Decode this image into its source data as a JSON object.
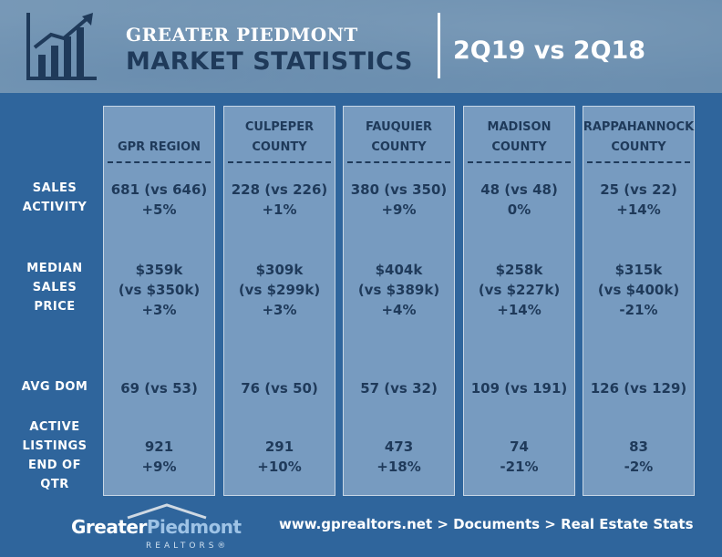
{
  "header": {
    "brand_line1": "GREATER PIEDMONT",
    "brand_line2": "MARKET STATISTICS",
    "period": "2Q19 vs 2Q18",
    "icon": "bar-chart-growth-icon"
  },
  "row_labels": [
    [
      "SALES",
      "ACTIVITY"
    ],
    [
      "MEDIAN",
      "SALES",
      "PRICE"
    ],
    [
      "AVG DOM"
    ],
    [
      "ACTIVE",
      "LISTINGS",
      "END OF",
      "QTR"
    ]
  ],
  "regions": [
    {
      "name": [
        "GPR REGION"
      ],
      "sales": [
        "681 (vs 646)",
        "+5%"
      ],
      "price": [
        "$359k",
        "(vs $350k)",
        "+3%"
      ],
      "dom": [
        "69 (vs 53)"
      ],
      "listings": [
        "921",
        "+9%"
      ]
    },
    {
      "name": [
        "CULPEPER",
        "COUNTY"
      ],
      "sales": [
        "228 (vs 226)",
        "+1%"
      ],
      "price": [
        "$309k",
        "(vs $299k)",
        "+3%"
      ],
      "dom": [
        "76 (vs 50)"
      ],
      "listings": [
        "291",
        "+10%"
      ]
    },
    {
      "name": [
        "FAUQUIER",
        "COUNTY"
      ],
      "sales": [
        "380 (vs 350)",
        "+9%"
      ],
      "price": [
        "$404k",
        "(vs $389k)",
        "+4%"
      ],
      "dom": [
        "57 (vs 32)"
      ],
      "listings": [
        "473",
        "+18%"
      ]
    },
    {
      "name": [
        "MADISON",
        "COUNTY"
      ],
      "sales": [
        "48 (vs 48)",
        "0%"
      ],
      "price": [
        "$258k",
        "(vs $227k)",
        "+14%"
      ],
      "dom": [
        "109 (vs 191)"
      ],
      "listings": [
        "74",
        "-21%"
      ]
    },
    {
      "name": [
        "RAPPAHANNOCK",
        "COUNTY"
      ],
      "sales": [
        "25 (vs 22)",
        "+14%"
      ],
      "price": [
        "$315k",
        "(vs $400k)",
        "-21%"
      ],
      "dom": [
        "126 (vs 129)"
      ],
      "listings": [
        "83",
        "-2%"
      ]
    }
  ],
  "footer": {
    "logo_greater": "Greater",
    "logo_piedmont": "Piedmont",
    "logo_realtors": "REALTORS®",
    "link": "www.gprealtors.net > Documents > Real Estate Stats"
  },
  "colors": {
    "background": "#2f659c",
    "text_dark": "#1f3a5a",
    "text_light": "#ffffff",
    "logo_accent": "#9ec3e6"
  }
}
